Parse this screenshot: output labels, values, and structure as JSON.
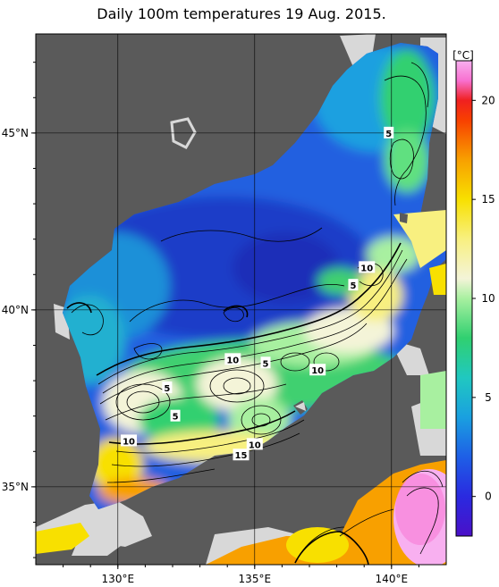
{
  "title": "Daily 100m temperatures 19 Aug. 2015.",
  "colorbar": {
    "unit": "[°C]",
    "min": -2,
    "max": 22,
    "ticks": [
      0,
      5,
      10,
      15,
      20
    ],
    "stops": [
      {
        "v": -2,
        "c": "#4a10c8"
      },
      {
        "v": 0,
        "c": "#2a2ae0"
      },
      {
        "v": 2,
        "c": "#1e5fe6"
      },
      {
        "v": 4,
        "c": "#1aa0e0"
      },
      {
        "v": 6,
        "c": "#20c8c0"
      },
      {
        "v": 8,
        "c": "#30d070"
      },
      {
        "v": 10,
        "c": "#a8f0a0"
      },
      {
        "v": 11,
        "c": "#f4f4d8"
      },
      {
        "v": 13,
        "c": "#f8f080"
      },
      {
        "v": 15,
        "c": "#f8e000"
      },
      {
        "v": 17,
        "c": "#f8a000"
      },
      {
        "v": 19,
        "c": "#f84000"
      },
      {
        "v": 20,
        "c": "#f02020"
      },
      {
        "v": 21,
        "c": "#f870d0"
      },
      {
        "v": 22,
        "c": "#f8b0f0"
      }
    ]
  },
  "axes": {
    "x_ticks": [
      {
        "label": "130°E",
        "lon": 130
      },
      {
        "label": "135°E",
        "lon": 135
      },
      {
        "label": "140°E",
        "lon": 140
      }
    ],
    "y_ticks": [
      {
        "label": "35°N",
        "lat": 35
      },
      {
        "label": "40°N",
        "lat": 40
      },
      {
        "label": "45°N",
        "lat": 45
      }
    ]
  },
  "contour_labels": [
    {
      "text": "5",
      "lon": 139.9,
      "lat": 45.0
    },
    {
      "text": "10",
      "lon": 139.1,
      "lat": 41.2
    },
    {
      "text": "5",
      "lon": 138.6,
      "lat": 40.7
    },
    {
      "text": "10",
      "lon": 134.2,
      "lat": 38.6
    },
    {
      "text": "5",
      "lon": 135.4,
      "lat": 38.5
    },
    {
      "text": "10",
      "lon": 137.3,
      "lat": 38.3
    },
    {
      "text": "5",
      "lon": 131.8,
      "lat": 37.8
    },
    {
      "text": "5",
      "lon": 132.1,
      "lat": 37.0
    },
    {
      "text": "10",
      "lon": 130.4,
      "lat": 36.3
    },
    {
      "text": "10",
      "lon": 135.0,
      "lat": 36.2
    },
    {
      "text": "15",
      "lon": 134.5,
      "lat": 35.9
    }
  ],
  "colors": {
    "land": "#5a5a5a",
    "nodata": "#d8d8d8",
    "graticule": "#000000"
  }
}
